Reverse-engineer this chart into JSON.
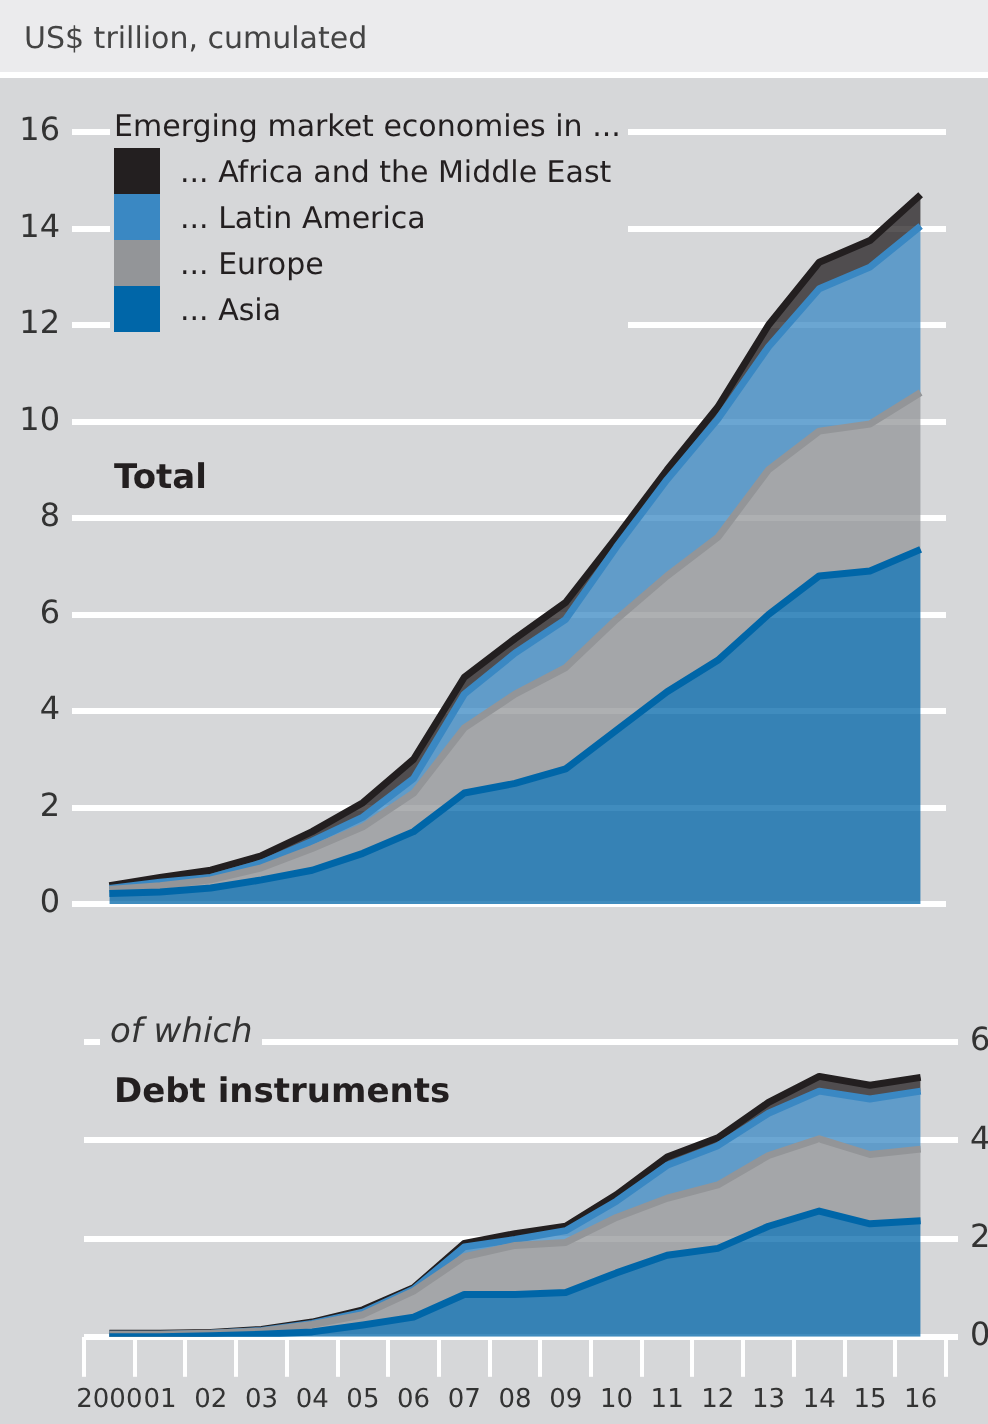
{
  "chart_data": [
    {
      "type": "area",
      "stacked": true,
      "title": "Total",
      "ylabel": "US$ trillion, cumulated",
      "legend_title": "Emerging market economies in ...",
      "legend": "top left",
      "grid": "y",
      "tick_labels": "y",
      "categories": [
        "2000",
        "01",
        "02",
        "03",
        "04",
        "05",
        "06",
        "07",
        "08",
        "09",
        "10",
        "11",
        "12",
        "13",
        "14",
        "15",
        "16"
      ],
      "ylim": [
        0,
        16
      ],
      "yticks": [
        0,
        2,
        4,
        6,
        8,
        10,
        12,
        14,
        16
      ],
      "series": [
        {
          "name": "... Asia",
          "color": "#0066a8",
          "values": [
            0.22,
            0.25,
            0.33,
            0.5,
            0.7,
            1.05,
            1.5,
            2.3,
            2.5,
            2.8,
            3.6,
            4.4,
            5.05,
            6.0,
            6.8,
            6.9,
            7.35
          ]
        },
        {
          "name": "... Europe",
          "color": "#939598",
          "values": [
            0.08,
            0.13,
            0.17,
            0.25,
            0.45,
            0.55,
            0.8,
            1.35,
            1.85,
            2.1,
            2.3,
            2.4,
            2.55,
            3.0,
            3.0,
            3.05,
            3.25
          ]
        },
        {
          "name": "... Latin America",
          "color": "#3a88c3",
          "values": [
            0.02,
            0.07,
            0.05,
            0.1,
            0.15,
            0.2,
            0.3,
            0.7,
            0.85,
            1.0,
            1.5,
            2.0,
            2.45,
            2.55,
            2.95,
            3.25,
            3.45
          ]
        },
        {
          "name": "... Africa and the Middle East",
          "color": "#231f20",
          "values": [
            0.06,
            0.1,
            0.15,
            0.15,
            0.2,
            0.3,
            0.4,
            0.35,
            0.3,
            0.35,
            0.2,
            0.2,
            0.25,
            0.45,
            0.55,
            0.55,
            0.65
          ]
        }
      ]
    },
    {
      "type": "area",
      "stacked": true,
      "title": "Debt instruments",
      "subtitle": "of which",
      "grid": "y",
      "categories": [
        "2000",
        "01",
        "02",
        "03",
        "04",
        "05",
        "06",
        "07",
        "08",
        "09",
        "10",
        "11",
        "12",
        "13",
        "14",
        "15",
        "16"
      ],
      "ylim": [
        0,
        6
      ],
      "yticks": [
        0,
        2,
        4,
        6
      ],
      "series": [
        {
          "color": "#0066a8",
          "values": [
            0,
            0,
            0.02,
            0.05,
            0.1,
            0.24,
            0.4,
            0.86,
            0.86,
            0.9,
            1.3,
            1.66,
            1.8,
            2.25,
            2.56,
            2.3,
            2.36
          ]
        },
        {
          "color": "#939598",
          "values": [
            0.05,
            0.05,
            0.05,
            0.07,
            0.15,
            0.21,
            0.53,
            0.77,
            1.0,
            1.02,
            1.13,
            1.16,
            1.29,
            1.44,
            1.47,
            1.41,
            1.46
          ]
        },
        {
          "color": "#3a88c3",
          "values": [
            0,
            0,
            0,
            0.01,
            0.02,
            0.05,
            0.04,
            0.2,
            0.12,
            0.24,
            0.33,
            0.67,
            0.8,
            0.86,
            0.97,
            1.13,
            1.18
          ]
        },
        {
          "color": "#231f20",
          "values": [
            0.02,
            0.02,
            0.02,
            0.02,
            0.03,
            0.05,
            0.03,
            0.07,
            0.12,
            0.09,
            0.13,
            0.17,
            0.16,
            0.22,
            0.3,
            0.28,
            0.28
          ]
        }
      ]
    }
  ]
}
